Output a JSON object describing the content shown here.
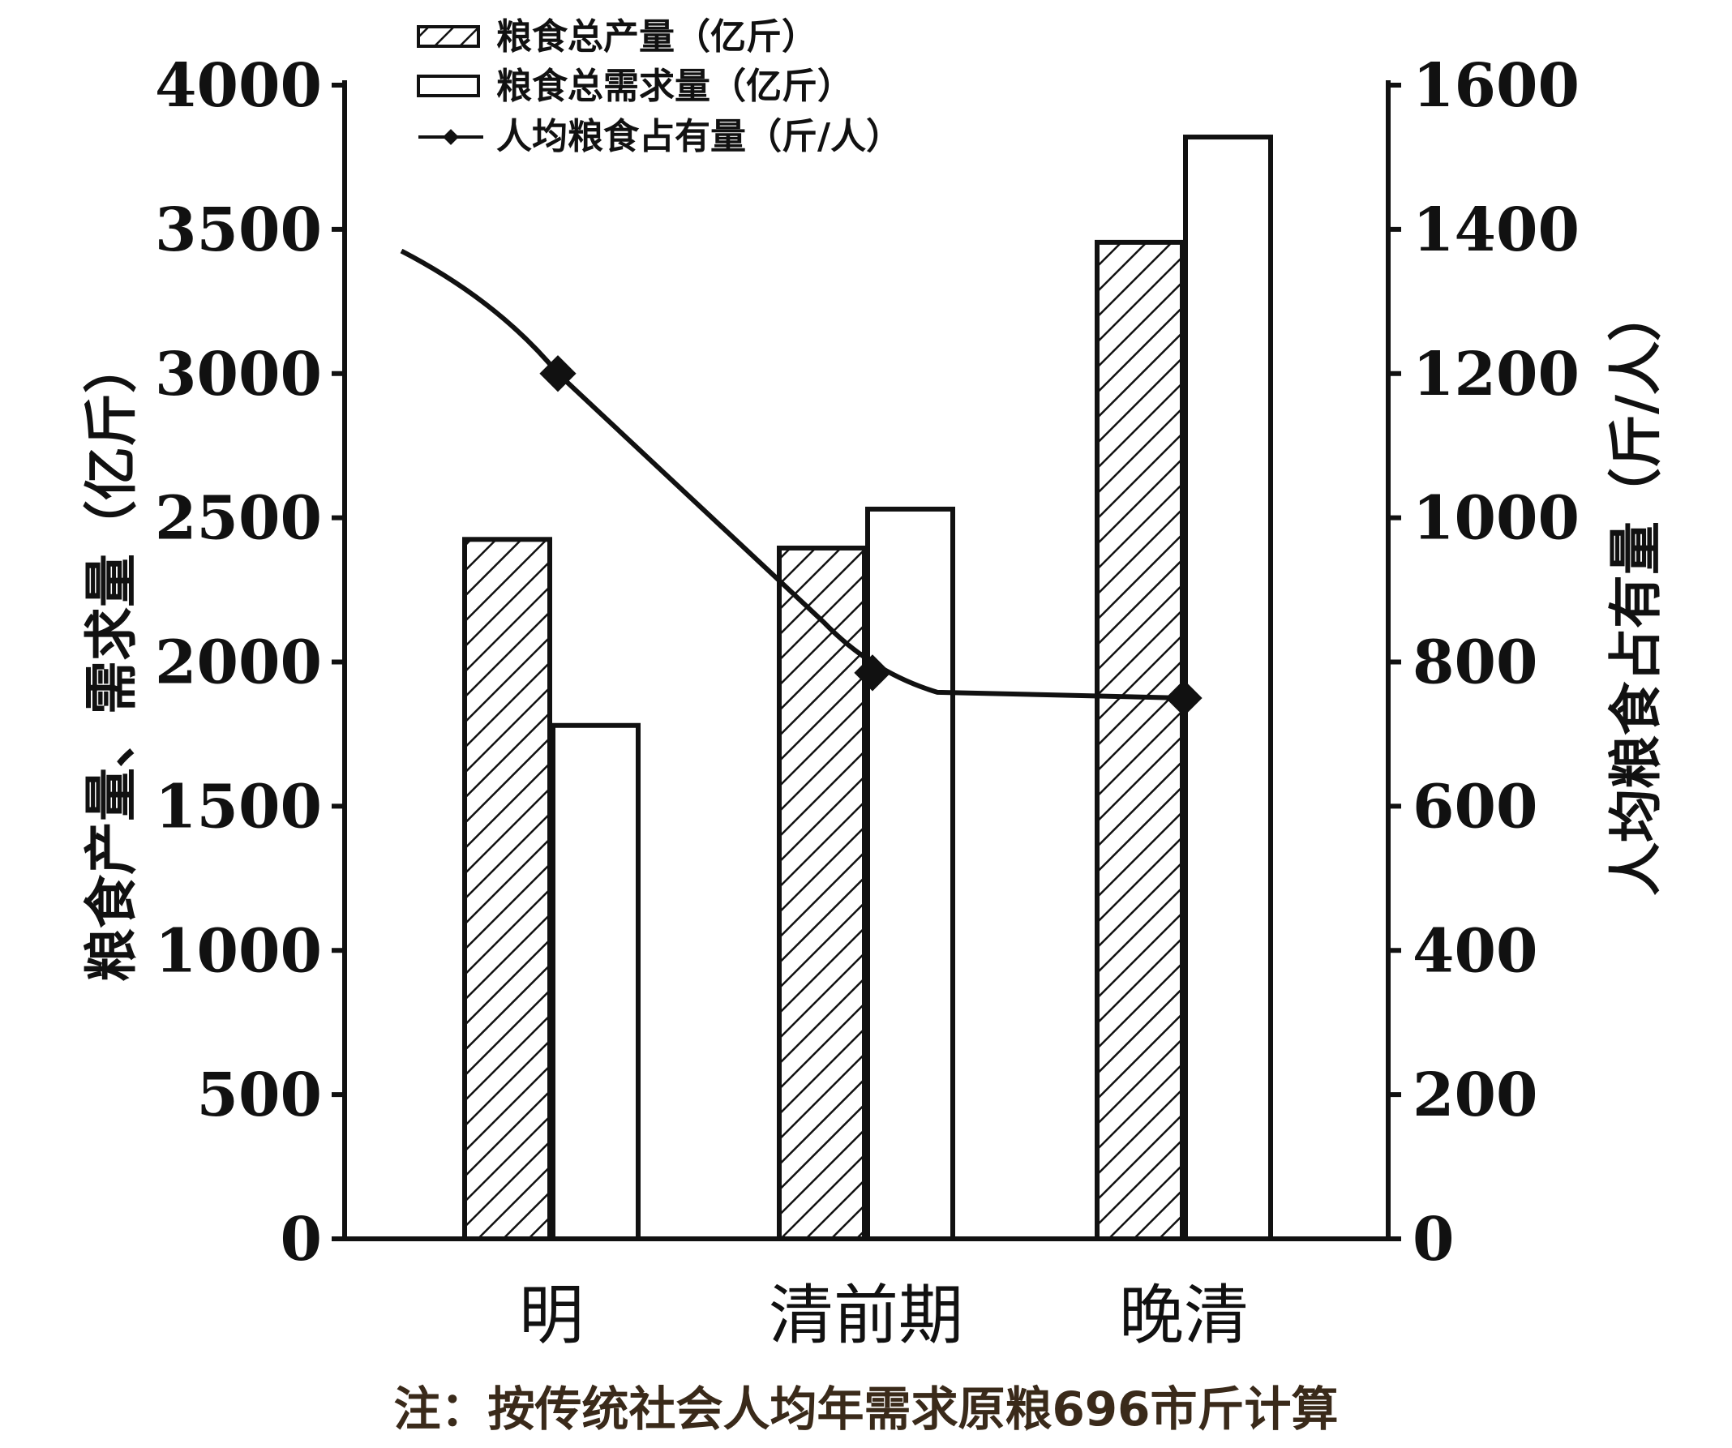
{
  "chart_data": {
    "type": "bar",
    "categories": [
      "明",
      "清前期",
      "晚清"
    ],
    "series": [
      {
        "name": "粮食总产量（亿斤）",
        "axis": "left",
        "style": "hatched",
        "values": [
          2425,
          2395,
          3455
        ]
      },
      {
        "name": "粮食总需求量（亿斤）",
        "axis": "left",
        "style": "white",
        "values": [
          1780,
          2530,
          3820
        ]
      },
      {
        "name": "人均粮食占有量（斤/人）",
        "axis": "right",
        "type": "line",
        "values": [
          1200,
          785,
          750
        ]
      }
    ],
    "left_axis": {
      "label": "粮食产量、需求量（亿斤）",
      "ylim": [
        0,
        4000
      ],
      "ticks": [
        "0",
        "500",
        "1000",
        "1500",
        "2000",
        "2500",
        "3000",
        "3500",
        "4000"
      ]
    },
    "right_axis": {
      "label": "人均粮食占有量（斤/人）",
      "ylim": [
        0,
        1600
      ],
      "ticks": [
        "0",
        "200",
        "400",
        "600",
        "800",
        "1000",
        "1200",
        "1400",
        "1600"
      ]
    },
    "legend": {
      "position": "top-center",
      "items": [
        "粮食总产量（亿斤）",
        "粮食总需求量（亿斤）",
        "人均粮食占有量（斤/人）"
      ]
    },
    "note": "注：按传统社会人均年需求原粮696市斤计算",
    "grid": false
  }
}
